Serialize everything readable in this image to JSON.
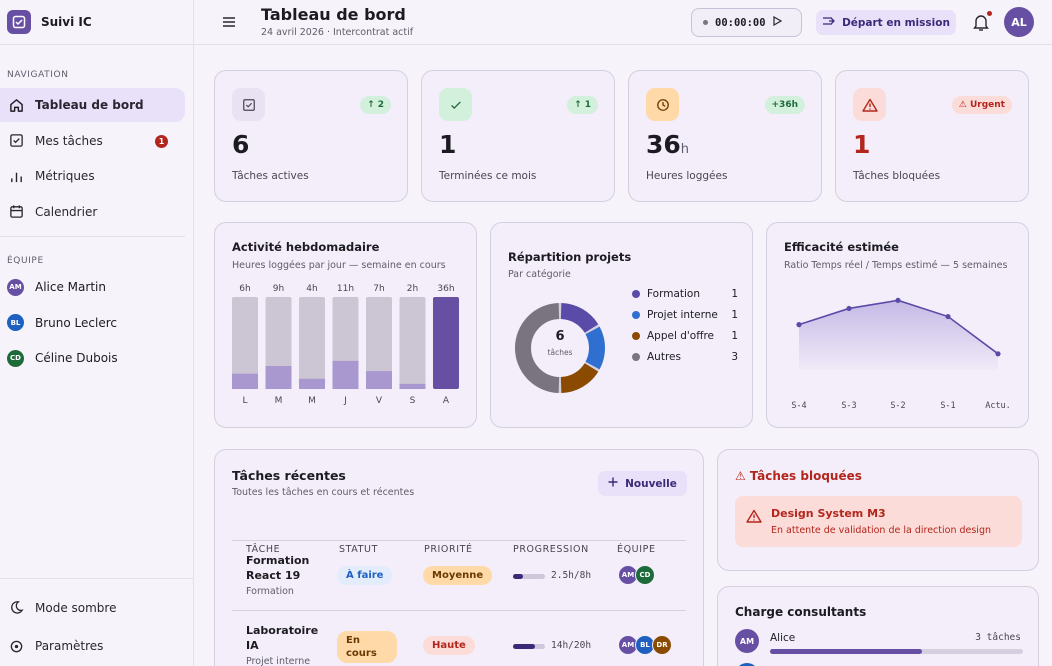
{
  "app": {
    "name": "Suivi IC"
  },
  "header": {
    "title": "Tableau de bord",
    "subtitle": "24 avril 2026 · Intercontrat actif",
    "timer": "00:00:00",
    "mission_button": "Départ en mission",
    "user_initials": "AL"
  },
  "sidebar": {
    "nav_label": "NAVIGATION",
    "items": [
      {
        "label": "Tableau de bord",
        "icon": "home-icon"
      },
      {
        "label": "Mes tâches",
        "icon": "checkbox-icon",
        "badge": "1"
      },
      {
        "label": "Métriques",
        "icon": "bar-chart-icon"
      },
      {
        "label": "Calendrier",
        "icon": "calendar-icon"
      }
    ],
    "team_label": "ÉQUIPE",
    "members": [
      {
        "initials": "AM",
        "name": "Alice Martin",
        "color": "#6750a4"
      },
      {
        "initials": "BL",
        "name": "Bruno Leclerc",
        "color": "#1f5fbf"
      },
      {
        "initials": "CD",
        "name": "Céline Dubois",
        "color": "#1e6b3a"
      }
    ],
    "bottom": [
      {
        "label": "Mode sombre",
        "icon": "moon-icon"
      },
      {
        "label": "Paramètres",
        "icon": "settings-icon"
      }
    ]
  },
  "kpis": [
    {
      "value": "6",
      "unit": "",
      "label": "Tâches actives",
      "badge": "↑ 2",
      "icon": "checkbox-icon",
      "icon_bg": "#e8e2f2",
      "badge_bg": "#d3f0dc",
      "badge_color": "#1e6b3a",
      "value_color": "#1d1b22"
    },
    {
      "value": "1",
      "unit": "",
      "label": "Terminées ce mois",
      "badge": "↑ 1",
      "icon": "check-icon",
      "icon_bg": "#d3f0dc",
      "badge_bg": "#d3f0dc",
      "badge_color": "#1e6b3a",
      "value_color": "#1d1b22"
    },
    {
      "value": "36",
      "unit": "h",
      "label": "Heures loggées",
      "badge": "+36h",
      "icon": "clock-icon",
      "icon_bg": "#ffd9a8",
      "badge_bg": "#d3f0dc",
      "badge_color": "#1e6b3a",
      "value_color": "#1d1b22"
    },
    {
      "value": "1",
      "unit": "",
      "label": "Tâches bloquées",
      "badge": "⚠ Urgent",
      "icon": "warning-icon",
      "icon_bg": "#fcdcd8",
      "badge_bg": "#fcdcd8",
      "badge_color": "#b3261e",
      "value_color": "#b3261e"
    }
  ],
  "weekly": {
    "title": "Activité hebdomadaire",
    "subtitle": "Heures loggées par jour — semaine en cours",
    "chart_data": {
      "type": "bar",
      "categories": [
        "L",
        "M",
        "M",
        "J",
        "V",
        "S",
        "A"
      ],
      "values": [
        6,
        9,
        4,
        11,
        7,
        2,
        36
      ],
      "value_labels": [
        "6h",
        "9h",
        "4h",
        "11h",
        "7h",
        "2h",
        "36h"
      ],
      "ylim": [
        0,
        36
      ]
    }
  },
  "projects": {
    "title": "Répartition projets",
    "subtitle": "Par catégorie",
    "center_value": "6",
    "center_label": "tâches",
    "chart_data": {
      "type": "pie",
      "categories": [
        "Formation",
        "Projet interne",
        "Appel d'offre",
        "Autres"
      ],
      "values": [
        1,
        1,
        1,
        3
      ],
      "colors": [
        "#5b4ba8",
        "#2f6fd0",
        "#8a4b00",
        "#7a7480"
      ]
    }
  },
  "efficiency": {
    "title": "Efficacité estimée",
    "subtitle": "Ratio Temps réel / Temps estimé — 5 semaines",
    "chart_data": {
      "type": "area",
      "categories": [
        "S-4",
        "S-3",
        "S-2",
        "S-1",
        "Actu."
      ],
      "values": [
        0.78,
        0.88,
        0.93,
        0.83,
        0.6
      ]
    }
  },
  "recent": {
    "title": "Tâches récentes",
    "subtitle": "Toutes les tâches en cours et récentes",
    "new_button": "Nouvelle",
    "columns": [
      "TÂCHE",
      "STATUT",
      "PRIORITÉ",
      "PROGRESSION",
      "ÉQUIPE"
    ],
    "rows": [
      {
        "name": "Formation React 19",
        "category": "Formation",
        "status": "À faire",
        "priority": "Moyenne",
        "progress_text": "2.5h/8h",
        "progress": 0.31,
        "team": [
          "AM",
          "CD"
        ]
      },
      {
        "name": "Laboratoire IA",
        "category": "Projet interne",
        "status": "En cours",
        "priority": "Haute",
        "progress_text": "14h/20h",
        "progress": 0.7,
        "team": [
          "AM",
          "BL",
          "DR"
        ]
      }
    ]
  },
  "blocked": {
    "title": "⚠ Tâches bloquées",
    "item_title": "Design System M3",
    "item_desc": "En attente de validation de la direction design"
  },
  "load": {
    "title": "Charge consultants",
    "rows": [
      {
        "initials": "AM",
        "name": "Alice",
        "tasks": "3 tâches",
        "level": 0.6
      }
    ]
  }
}
